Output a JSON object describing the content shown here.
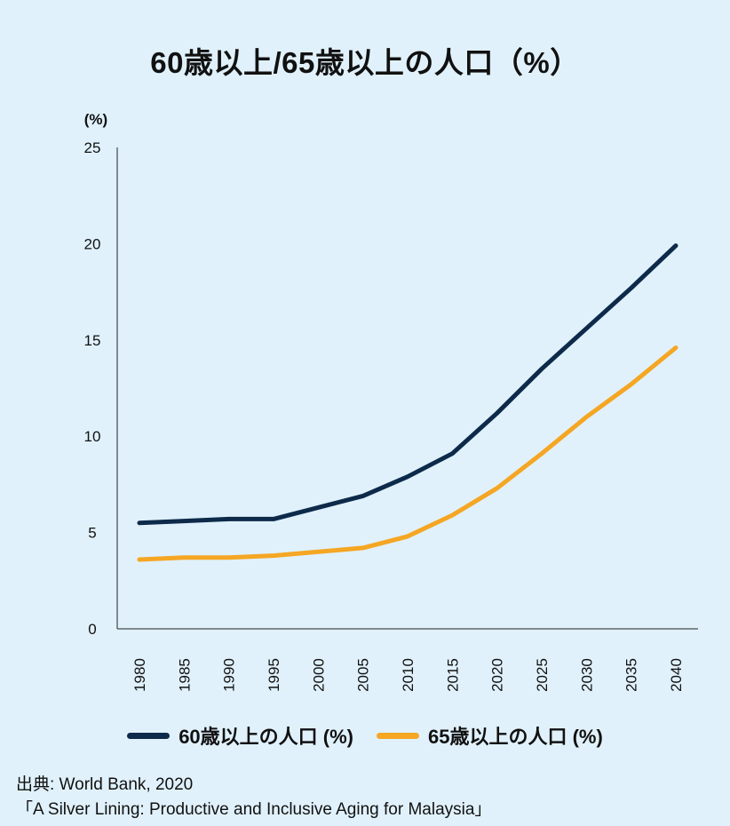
{
  "title": "60歳以上/65歳以上の人口（%）",
  "source": {
    "line1": "出典: World Bank, 2020",
    "line2": "「A Silver Lining: Productive and Inclusive Aging for Malaysia」"
  },
  "chart_data": {
    "type": "line",
    "unit_label": "(%)",
    "x": [
      "1980",
      "1985",
      "1990",
      "1995",
      "2000",
      "2005",
      "2010",
      "2015",
      "2020",
      "2025",
      "2030",
      "2035",
      "2040"
    ],
    "ylim": [
      0,
      25
    ],
    "yticks": [
      0,
      5,
      10,
      15,
      20,
      25
    ],
    "grid": false,
    "legend_position": "bottom",
    "series": [
      {
        "name": "60歳以上の人口 (%)",
        "color": "#0d2a4a",
        "values": [
          5.5,
          5.6,
          5.7,
          5.7,
          6.3,
          6.9,
          7.9,
          9.1,
          11.2,
          13.5,
          15.6,
          17.7,
          19.9
        ]
      },
      {
        "name": "65歳以上の人口 (%)",
        "color": "#f5a623",
        "values": [
          3.6,
          3.7,
          3.7,
          3.8,
          4.0,
          4.2,
          4.8,
          5.9,
          7.3,
          9.1,
          11.0,
          12.7,
          14.6
        ]
      }
    ]
  }
}
